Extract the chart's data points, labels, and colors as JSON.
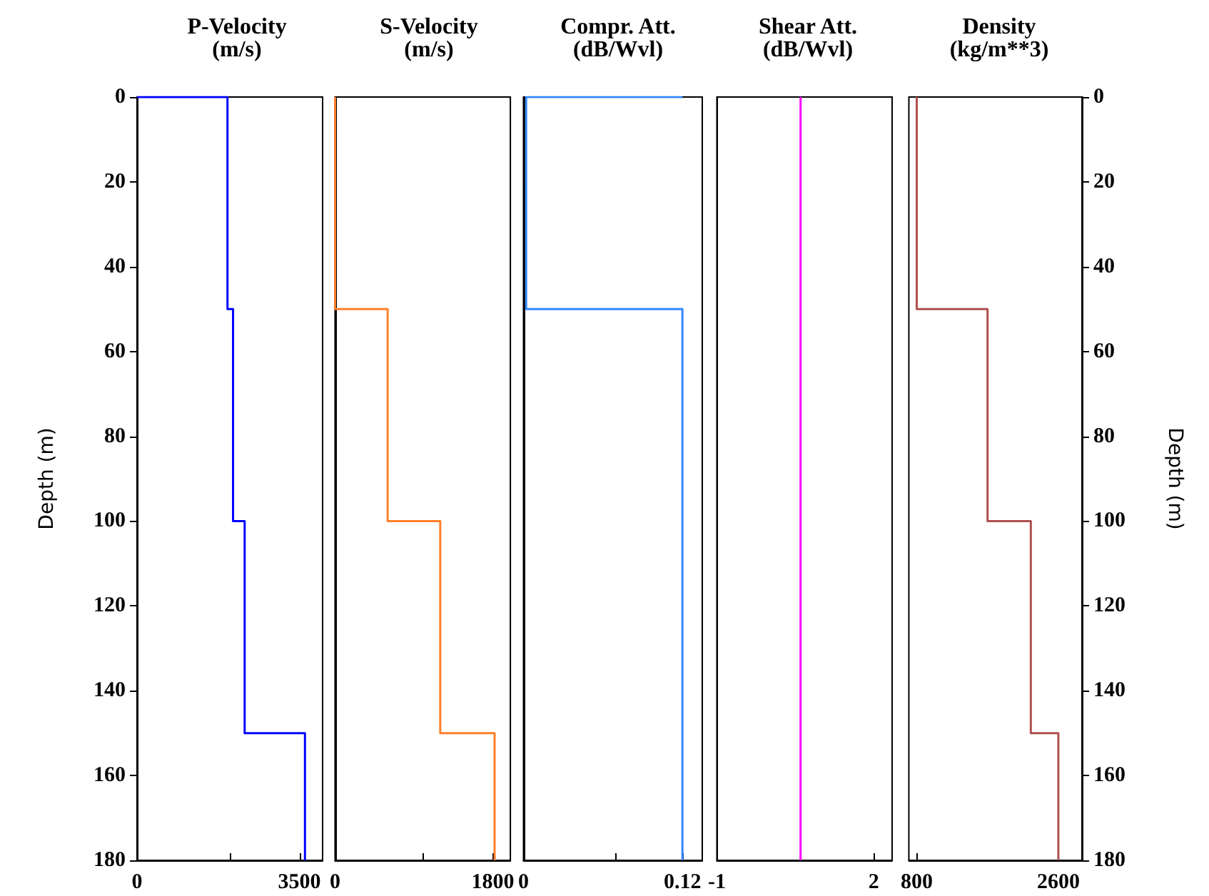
{
  "chart_data": [
    {
      "type": "line",
      "title": "P-Velocity",
      "subtitle": "(m/s)",
      "ylabel": "Depth (m)",
      "xlim": [
        0,
        4000
      ],
      "xticks": [
        0,
        {
          "value": 2000,
          "label": null
        },
        3500
      ],
      "ylim": [
        180,
        0
      ],
      "yticks": [
        0,
        20,
        40,
        60,
        80,
        100,
        120,
        140,
        160,
        180
      ],
      "grid": false,
      "marker": "none",
      "line_style": "solid",
      "series": [
        {
          "color": "#0000ff",
          "x": [
            0,
            1950,
            1950,
            2070,
            2070,
            2320,
            2320,
            3620,
            3620
          ],
          "values": [
            0,
            0,
            50,
            50,
            100,
            100,
            150,
            150,
            180
          ]
        }
      ]
    },
    {
      "type": "line",
      "title": "S-Velocity",
      "subtitle": "(m/s)",
      "xlim": [
        0,
        2000
      ],
      "xticks": [
        0,
        {
          "value": 1000,
          "label": null
        },
        1800
      ],
      "ylim": [
        180,
        0
      ],
      "tick_labels": "x",
      "grid": false,
      "marker": "none",
      "line_style": "solid",
      "series": [
        {
          "color": "#ff7f2a",
          "x": [
            0,
            0,
            600,
            600,
            1200,
            1200,
            1820,
            1820
          ],
          "values": [
            0,
            50,
            50,
            100,
            100,
            150,
            150,
            180
          ]
        }
      ]
    },
    {
      "type": "line",
      "title": "Compr. Att.",
      "subtitle": "(dB/Wvl)",
      "xlim": [
        0,
        0.135
      ],
      "xticks": [
        0,
        {
          "value": 0.07,
          "label": null
        },
        0.12
      ],
      "ylim": [
        180,
        0
      ],
      "tick_labels": "x",
      "grid": false,
      "marker": "none",
      "line_style": "solid",
      "series": [
        {
          "color": "#3388ff",
          "x": [
            0.12,
            0.002,
            0.002,
            0.12,
            0.12
          ],
          "values": [
            0,
            0,
            50,
            50,
            180
          ]
        }
      ]
    },
    {
      "type": "line",
      "title": "Shear Att.",
      "subtitle": "(dB/Wvl)",
      "xlim": [
        -1,
        2.35
      ],
      "xticks": [
        -1,
        2
      ],
      "ylim": [
        180,
        0
      ],
      "tick_labels": "x",
      "grid": false,
      "marker": "none",
      "line_style": "solid",
      "series": [
        {
          "color": "#ff00ff",
          "x": [
            0.6,
            0.6
          ],
          "values": [
            0,
            180
          ]
        }
      ]
    },
    {
      "type": "line",
      "title": "Density",
      "subtitle": "(kg/m**3)",
      "y2label": "Depth (m)",
      "xlim": [
        700,
        2900
      ],
      "xticks": [
        800,
        2600
      ],
      "y2lim": [
        180,
        0
      ],
      "y2ticks": [
        0,
        20,
        40,
        60,
        80,
        100,
        120,
        140,
        160,
        180
      ],
      "grid": false,
      "marker": "none",
      "line_style": "solid",
      "series": [
        {
          "color": "#b05050",
          "axis": "y2",
          "x": [
            800,
            800,
            1700,
            1700,
            2250,
            2250,
            2600,
            2600
          ],
          "values": [
            0,
            50,
            50,
            100,
            100,
            150,
            150,
            180
          ]
        }
      ]
    }
  ]
}
